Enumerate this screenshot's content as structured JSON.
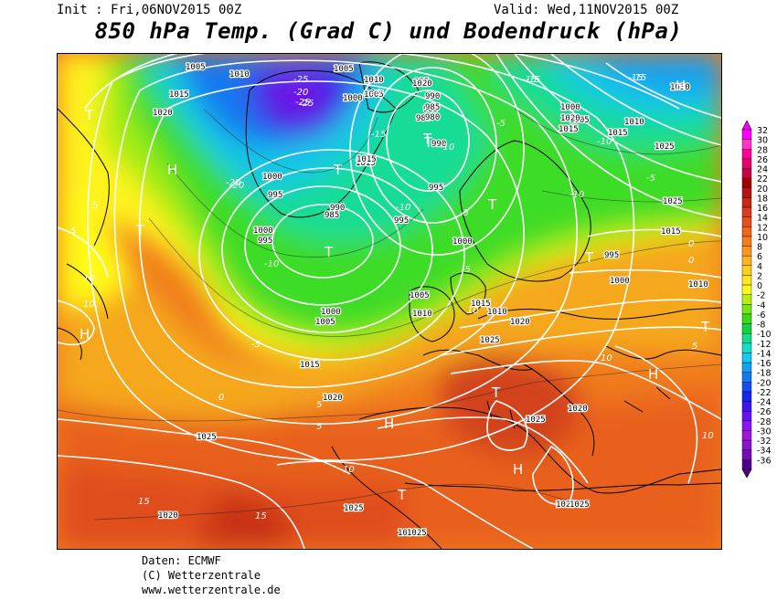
{
  "header": {
    "init": "Init : Fri,06NOV2015 00Z",
    "valid": "Valid: Wed,11NOV2015 00Z",
    "title": "850 hPa Temp. (Grad C) und Bodendruck (hPa)"
  },
  "legend": {
    "values": [
      "32",
      "30",
      "28",
      "26",
      "24",
      "22",
      "20",
      "18",
      "16",
      "14",
      "12",
      "10",
      "8",
      "6",
      "4",
      "2",
      "0",
      "-2",
      "-4",
      "-6",
      "-8",
      "-10",
      "-12",
      "-14",
      "-16",
      "-18",
      "-20",
      "-22",
      "-24",
      "-26",
      "-28",
      "-30",
      "-32",
      "-34",
      "-36"
    ],
    "colors": [
      "#ff00ff",
      "#ff33cc",
      "#ff0099",
      "#e8006e",
      "#c80046",
      "#a00000",
      "#b41414",
      "#c82814",
      "#dc3c1e",
      "#e6501e",
      "#f0641e",
      "#f57d1e",
      "#fa961e",
      "#ffb41e",
      "#ffcd1e",
      "#ffe61e",
      "#fffa14",
      "#b4f014",
      "#78e614",
      "#3cdc14",
      "#14d23c",
      "#14dc8c",
      "#14dcc8",
      "#14c8f0",
      "#14a0f0",
      "#1478f0",
      "#1450f0",
      "#1428f0",
      "#3c14f0",
      "#6414f0",
      "#8c14f0",
      "#a014dc",
      "#8c14c8",
      "#780ab4",
      "#50008c"
    ]
  },
  "map": {
    "pressure_labels": [
      {
        "text": "1005"
      },
      {
        "text": "1010"
      },
      {
        "text": "1015"
      },
      {
        "text": "1020"
      },
      {
        "text": "1005"
      },
      {
        "text": "1010"
      },
      {
        "text": "1005"
      },
      {
        "text": "1000"
      },
      {
        "text": "995"
      },
      {
        "text": "990"
      },
      {
        "text": "985"
      },
      {
        "text": "980"
      },
      {
        "text": "985"
      },
      {
        "text": "990"
      },
      {
        "text": "995"
      },
      {
        "text": "1000"
      },
      {
        "text": "1005"
      },
      {
        "text": "1010"
      },
      {
        "text": "1015"
      },
      {
        "text": "1020"
      },
      {
        "text": "1025"
      },
      {
        "text": "1020"
      },
      {
        "text": "1025"
      },
      {
        "text": "1030"
      },
      {
        "text": "1025"
      },
      {
        "text": "1020"
      },
      {
        "text": "1015"
      },
      {
        "text": "1010"
      },
      {
        "text": "1005"
      },
      {
        "text": "1000"
      },
      {
        "text": "995"
      },
      {
        "text": "1000"
      },
      {
        "text": "1015"
      },
      {
        "text": "1010"
      },
      {
        "text": "1025"
      },
      {
        "text": "1025"
      },
      {
        "text": "1025"
      },
      {
        "text": "1025"
      },
      {
        "text": "1020"
      },
      {
        "text": "1015"
      },
      {
        "text": "1030"
      },
      {
        "text": "1025"
      },
      {
        "text": "1000"
      },
      {
        "text": "995"
      },
      {
        "text": "1015"
      },
      {
        "text": "1020"
      },
      {
        "text": "1000"
      },
      {
        "text": "995"
      },
      {
        "text": "1015"
      },
      {
        "text": "1010"
      },
      {
        "text": "1020"
      },
      {
        "text": "1025"
      },
      {
        "text": "995"
      },
      {
        "text": "1000"
      },
      {
        "text": "1005"
      },
      {
        "text": "1015"
      },
      {
        "text": "990"
      },
      {
        "text": "985"
      },
      {
        "text": "980"
      }
    ],
    "temp_labels": [
      {
        "text": "-25"
      },
      {
        "text": "-25"
      },
      {
        "text": "-20"
      },
      {
        "text": "-20"
      },
      {
        "text": "-20"
      },
      {
        "text": "-15"
      },
      {
        "text": "-15"
      },
      {
        "text": "-15"
      },
      {
        "text": "-10"
      },
      {
        "text": "-10"
      },
      {
        "text": "-10"
      },
      {
        "text": "-5"
      },
      {
        "text": "-5"
      },
      {
        "text": "-5"
      },
      {
        "text": "-5"
      },
      {
        "text": "5"
      },
      {
        "text": "5"
      },
      {
        "text": "5"
      },
      {
        "text": "5"
      },
      {
        "text": "0"
      },
      {
        "text": "0"
      },
      {
        "text": "0"
      },
      {
        "text": "10"
      },
      {
        "text": "10"
      },
      {
        "text": "10"
      },
      {
        "text": "10"
      },
      {
        "text": "10"
      },
      {
        "text": "15"
      },
      {
        "text": "15"
      },
      {
        "text": "10"
      },
      {
        "text": "5"
      },
      {
        "text": "-5"
      },
      {
        "text": "-10"
      },
      {
        "text": "-10"
      },
      {
        "text": "-15"
      },
      {
        "text": "-15"
      },
      {
        "text": "-20"
      },
      {
        "text": "-25"
      }
    ],
    "systems": [
      {
        "text": "H"
      },
      {
        "text": "H"
      },
      {
        "text": "H"
      },
      {
        "text": "H"
      },
      {
        "text": "H"
      },
      {
        "text": "H"
      },
      {
        "text": "T"
      },
      {
        "text": "T"
      },
      {
        "text": "T"
      },
      {
        "text": "T"
      },
      {
        "text": "T"
      },
      {
        "text": "T"
      },
      {
        "text": "T"
      },
      {
        "text": "T"
      },
      {
        "text": "T"
      },
      {
        "text": "T"
      },
      {
        "text": "T"
      }
    ]
  },
  "credits": {
    "line1": "Daten: ECMWF",
    "line2": "(C) Wetterzentrale",
    "line3": "www.wetterzentrale.de"
  }
}
